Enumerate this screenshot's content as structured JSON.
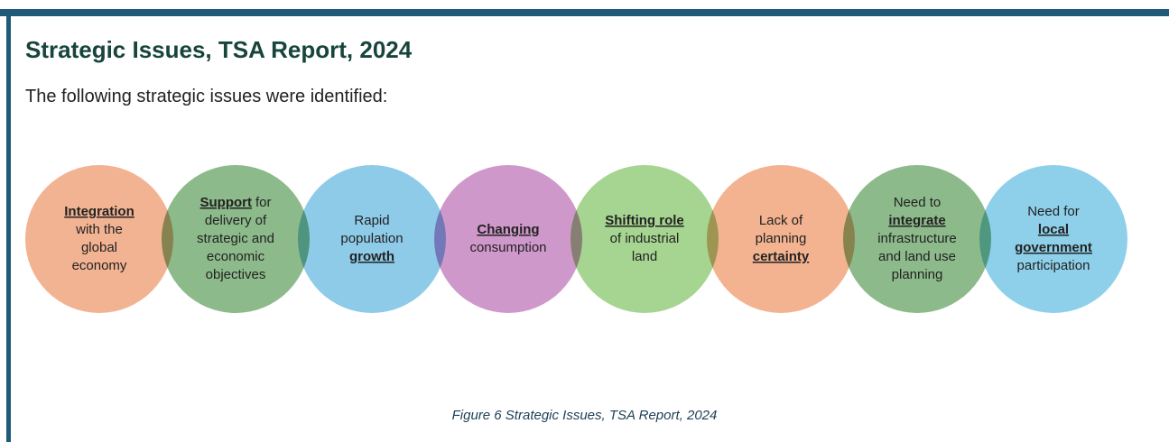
{
  "header": {
    "title": "Strategic Issues, TSA Report, 2024",
    "intro": "The following strategic issues were identified:"
  },
  "nodes": [
    {
      "color": "#f2b393",
      "lines": [
        [
          {
            "text": "Integration",
            "strong": true
          }
        ],
        [
          {
            "text": "with the"
          }
        ],
        [
          {
            "text": "global"
          }
        ],
        [
          {
            "text": "economy"
          }
        ]
      ]
    },
    {
      "color": "#8dba8b",
      "lines": [
        [
          {
            "text": "Support",
            "strong": true
          },
          {
            "text": "for"
          }
        ],
        [
          {
            "text": "delivery of"
          }
        ],
        [
          {
            "text": "strategic and"
          }
        ],
        [
          {
            "text": "economic"
          }
        ],
        [
          {
            "text": "objectives"
          }
        ]
      ]
    },
    {
      "color": "#8ecbe8",
      "lines": [
        [
          {
            "text": "Rapid"
          }
        ],
        [
          {
            "text": "population"
          }
        ],
        [
          {
            "text": "growth",
            "strong": true
          }
        ]
      ]
    },
    {
      "color": "#cf98ca",
      "lines": [
        [
          {
            "text": "Changing",
            "strong": true
          }
        ],
        [
          {
            "text": "consumption"
          }
        ]
      ]
    },
    {
      "color": "#a6d591",
      "lines": [
        [
          {
            "text": "Shifting role",
            "strong": true
          }
        ],
        [
          {
            "text": "of industrial"
          }
        ],
        [
          {
            "text": "land"
          }
        ]
      ]
    },
    {
      "color": "#f3b391",
      "lines": [
        [
          {
            "text": "Lack of"
          }
        ],
        [
          {
            "text": "planning"
          }
        ],
        [
          {
            "text": "certainty",
            "strong": true
          }
        ]
      ]
    },
    {
      "color": "#8dba8b",
      "lines": [
        [
          {
            "text": "Need to"
          }
        ],
        [
          {
            "text": "integrate",
            "strong": true
          }
        ],
        [
          {
            "text": "infrastructure"
          }
        ],
        [
          {
            "text": "and land use"
          }
        ],
        [
          {
            "text": "planning"
          }
        ]
      ]
    },
    {
      "color": "#8ed0ea",
      "lines": [
        [
          {
            "text": "Need for"
          }
        ],
        [
          {
            "text": "local",
            "strong": true
          }
        ],
        [
          {
            "text": "government",
            "strong": true
          }
        ],
        [
          {
            "text": "participation"
          }
        ]
      ]
    }
  ],
  "caption": "Figure 6 Strategic Issues, TSA Report, 2024"
}
